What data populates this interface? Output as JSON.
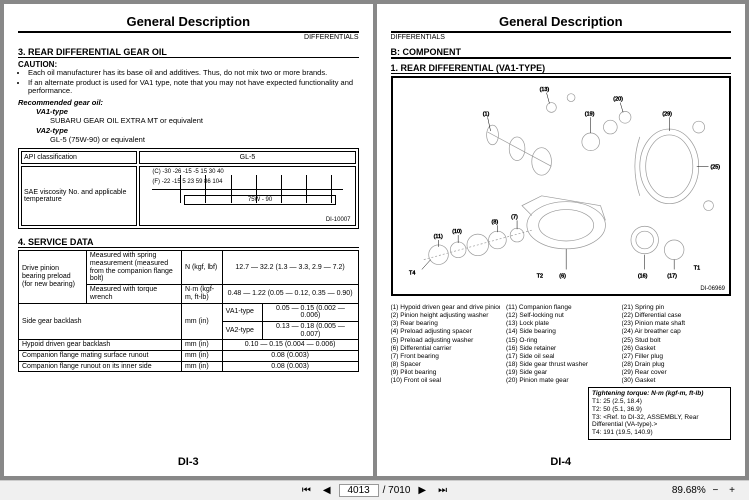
{
  "header_title": "General Description",
  "header_sub": "DIFFERENTIALS",
  "left": {
    "sec3_title": "3. REAR DIFFERENTIAL GEAR OIL",
    "caution": "CAUTION:",
    "caut1": "Each oil manufacturer has its base oil and additives. Thus, do not mix two or more brands.",
    "caut2": "If an alternate product is used for VA1 type, note that you may not have expected functionality and performance.",
    "rec": "Recommended gear oil:",
    "va1t": "VA1-type",
    "va1v": "SUBARU GEAR OIL EXTRA MT or equivalent",
    "va2t": "VA2-type",
    "va2v": "GL-5 (75W-90) or equivalent",
    "api_cls": "API classification",
    "gl5": "GL-5",
    "sae_label": "SAE viscosity No. and applicable temperature",
    "scale_c": "(C)  -30   -26   -15    -5     15    30    40",
    "scale_f": "(F)  -22   -15     5    23    59    86  104",
    "band": "75W - 90",
    "visc_code": "DI-10007",
    "sec4_title": "4. SERVICE DATA",
    "svc_r1a": "Drive pinion bearing preload (for new bearing)",
    "svc_r1b": "Measured with spring measurement (measured from the companion flange bolt)",
    "svc_r1u": "N (kgf, lbf)",
    "svc_r1v": "12.7 — 32.2 (1.3 — 3.3, 2.9 — 7.2)",
    "svc_r2b": "Measured with torque wrench",
    "svc_r2u": "N·m (kgf-m, ft-lb)",
    "svc_r2v": "0.48 — 1.22 (0.05 — 0.12, 0.35 — 0.90)",
    "svc_r3a": "Side gear backlash",
    "svc_r3b1": "VA1-type",
    "svc_r3u": "mm (in)",
    "svc_r3v1": "0.05 — 0.15 (0.002 — 0.006)",
    "svc_r3b2": "VA2-type",
    "svc_r3v2": "0.13 — 0.18 (0.005 — 0.007)",
    "svc_r4a": "Hypoid driven gear backlash",
    "svc_r4v": "0.10 — 0.15 (0.004 — 0.006)",
    "svc_r5a": "Companion flange mating surface runout",
    "svc_r5v": "0.08 (0.003)",
    "svc_r6a": "Companion flange runout on its inner side",
    "svc_r6v": "0.08 (0.003)",
    "page_num": "DI-3"
  },
  "right": {
    "comp_title": "B: COMPONENT",
    "sub1_title": "1. REAR DIFFERENTIAL (VA1-TYPE)",
    "diag_code": "DI-06969",
    "parts": [
      "(1)   Hypoid driven gear and drive pinion set",
      "(2)   Pinion height adjusting washer",
      "(3)   Rear bearing",
      "(4)   Preload adjusting spacer",
      "(5)   Preload adjusting washer",
      "(6)   Differential carrier",
      "(7)   Front bearing",
      "(8)   Spacer",
      "(9)   Pilot bearing",
      "(10)  Front oil seal",
      "(11)  Companion flange",
      "(12)  Self-locking nut",
      "(13)  Lock plate",
      "(14)  Side bearing",
      "(15)  O-ring",
      "(16)  Side retainer",
      "(17)  Side oil seal",
      "(18)  Side gear thrust washer",
      "(19)  Side gear",
      "(20)  Pinion mate gear",
      "(21)  Spring pin",
      "(22)  Differential case",
      "(23)  Pinion mate shaft",
      "(24)  Air breather cap",
      "(25)  Stud bolt",
      "(26)  Gasket",
      "(27)  Filler plug",
      "(28)  Drain plug",
      "(29)  Rear cover",
      "(30)  Gasket"
    ],
    "torque_title": "Tightening torque: N·m (kgf-m, ft-lb)",
    "t1": "T1:   25 (2.5, 18.4)",
    "t2": "T2:   50 (5.1, 36.9)",
    "t3": "T3:   <Ref. to DI-32, ASSEMBLY, Rear Differential (VA-type).>",
    "t4": "T4:   191 (19.5, 140.9)",
    "page_num": "DI-4"
  },
  "status": {
    "first": "⏮",
    "prev": "◀",
    "page": "4013",
    "total": "/ 7010",
    "next": "▶",
    "last": "⏭",
    "zoom": "89.68%",
    "zoom_out": "−",
    "zoom_in": "+"
  }
}
